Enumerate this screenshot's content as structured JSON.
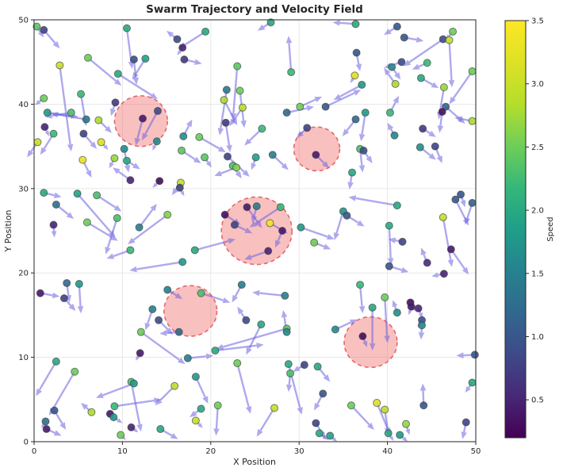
{
  "figure": {
    "title": "Swarm Trajectory and Velocity Field",
    "xlabel": "X Position",
    "ylabel": "Y Position"
  },
  "chart_data": {
    "type": "scatter",
    "subtype": "scatter-quiver-with-zones",
    "title": "Swarm Trajectory and Velocity Field",
    "xlabel": "X Position",
    "ylabel": "Y Position",
    "xlim": [
      0,
      50
    ],
    "ylim": [
      0,
      50
    ],
    "xticks": [
      0,
      10,
      20,
      30,
      40,
      50
    ],
    "yticks": [
      0,
      10,
      20,
      30,
      40,
      50
    ],
    "grid": true,
    "legend": "none",
    "colorbar": {
      "label": "Speed",
      "vmin": 0.2,
      "vmax": 3.5,
      "ticks": [
        0.5,
        1.0,
        1.5,
        2.0,
        2.5,
        3.0,
        3.5
      ]
    },
    "colors": {
      "viridis_stops": [
        "#440154",
        "#482878",
        "#3e4a89",
        "#31688e",
        "#26828e",
        "#1f9e89",
        "#35b779",
        "#6ece58",
        "#b5de2b",
        "#dde125",
        "#fde725"
      ],
      "arrow": "#6c63e0",
      "arrow_opacity": 0.55,
      "zone_fill": "#ee5a5a",
      "zone_fill_opacity": 0.38,
      "zone_stroke": "#e04848",
      "grid": "#e5e5e5",
      "spine": "#262626",
      "marker_edge": "#3a3a3a"
    },
    "zones": [
      [
        12.1,
        38.0,
        3.0
      ],
      [
        32.0,
        34.7,
        2.6
      ],
      [
        25.2,
        25.0,
        4.0
      ],
      [
        17.7,
        15.5,
        3.0
      ],
      [
        38.1,
        11.8,
        3.0
      ]
    ],
    "points": [
      [
        0.3,
        49.2,
        2.4,
        0.8,
        -1.3
      ],
      [
        1.1,
        48.8,
        0.8,
        1.8,
        -2.2
      ],
      [
        10.5,
        49.0,
        2.0,
        0.6,
        -4.8
      ],
      [
        16.2,
        47.7,
        0.9,
        -1.2,
        1.0
      ],
      [
        16.8,
        46.7,
        0.5,
        -0.6,
        -0.9
      ],
      [
        6.1,
        45.5,
        2.5,
        3.8,
        -3.3
      ],
      [
        2.9,
        44.6,
        3.0,
        1.3,
        -10.2
      ],
      [
        11.3,
        45.3,
        0.9,
        0.3,
        -3.0
      ],
      [
        12.6,
        45.4,
        1.9,
        -1.5,
        -2.5
      ],
      [
        17.0,
        45.3,
        0.7,
        2.0,
        -0.5
      ],
      [
        9.5,
        43.6,
        2.0,
        4.5,
        -3.0
      ],
      [
        5.3,
        41.2,
        2.2,
        0.6,
        -3.8
      ],
      [
        1.1,
        40.7,
        2.5,
        -1.0,
        -0.8
      ],
      [
        9.2,
        40.2,
        0.7,
        -0.5,
        -1.6
      ],
      [
        1.5,
        39.0,
        1.8,
        3.5,
        -0.5
      ],
      [
        4.2,
        39.0,
        2.3,
        -3.0,
        -0.5
      ],
      [
        5.9,
        38.2,
        1.4,
        -4.0,
        0.7
      ],
      [
        7.3,
        38.1,
        2.8,
        1.5,
        -1.5
      ],
      [
        1.2,
        37.3,
        0.5,
        0.5,
        -1.1
      ],
      [
        12.3,
        38.3,
        0.4,
        -0.8,
        -3.2
      ],
      [
        14.0,
        39.2,
        0.9,
        -1.8,
        -3.5
      ],
      [
        13.9,
        35.6,
        1.6,
        -0.5,
        -1.1
      ],
      [
        2.2,
        36.5,
        2.2,
        -1.5,
        -2.5
      ],
      [
        5.6,
        36.5,
        0.8,
        1.5,
        -1.8
      ],
      [
        7.6,
        35.5,
        3.2,
        0.8,
        -0.9
      ],
      [
        0.4,
        35.5,
        3.0,
        -1.2,
        -1.8
      ],
      [
        10.2,
        34.7,
        1.6,
        0.5,
        -2.8
      ],
      [
        5.5,
        33.4,
        3.3,
        1.0,
        -2.1
      ],
      [
        9.1,
        33.6,
        2.7,
        -0.6,
        -1.2
      ],
      [
        10.5,
        33.3,
        2.0,
        1.5,
        -1.0
      ],
      [
        16.7,
        34.5,
        2.4,
        2.2,
        -1.5
      ],
      [
        16.9,
        36.2,
        1.7,
        1.0,
        2.0
      ],
      [
        26.8,
        49.7,
        2.0,
        -1.5,
        -1.0
      ],
      [
        19.4,
        48.6,
        2.0,
        -3.0,
        -2.0
      ],
      [
        29.1,
        43.8,
        2.2,
        -0.3,
        4.3
      ],
      [
        23.0,
        44.5,
        2.4,
        -0.5,
        -6.4
      ],
      [
        21.8,
        41.7,
        1.4,
        -0.8,
        -5.4
      ],
      [
        23.3,
        41.6,
        2.5,
        0.5,
        -4.4
      ],
      [
        21.5,
        40.5,
        2.8,
        1.5,
        -3.0
      ],
      [
        23.6,
        39.6,
        2.9,
        -1.5,
        -2.2
      ],
      [
        28.6,
        39.0,
        1.2,
        3.1,
        0.7
      ],
      [
        30.1,
        39.7,
        2.5,
        2.5,
        1.2
      ],
      [
        33.0,
        39.7,
        1.0,
        4.0,
        2.0
      ],
      [
        21.7,
        37.8,
        0.7,
        0.5,
        -3.5
      ],
      [
        25.8,
        37.1,
        2.2,
        -2.0,
        -2.0
      ],
      [
        18.7,
        36.1,
        2.5,
        3.0,
        -1.8
      ],
      [
        19.3,
        33.7,
        2.4,
        0.8,
        -1.2
      ],
      [
        21.9,
        33.8,
        0.8,
        2.5,
        -2.4
      ],
      [
        25.1,
        33.7,
        1.9,
        -0.5,
        -1.5
      ],
      [
        27.0,
        34.0,
        1.5,
        1.8,
        -1.8
      ],
      [
        30.9,
        37.2,
        0.8,
        -1.2,
        -1.2
      ],
      [
        31.9,
        34.0,
        0.4,
        1.5,
        -1.6
      ],
      [
        22.5,
        32.7,
        2.3,
        1.0,
        -1.5
      ],
      [
        22.9,
        32.5,
        2.6,
        -2.5,
        -1.0
      ],
      [
        36.4,
        49.5,
        2.0,
        -2.6,
        0.2
      ],
      [
        41.1,
        49.2,
        1.0,
        -1.5,
        -1.0
      ],
      [
        41.9,
        47.9,
        1.0,
        2.2,
        -0.4
      ],
      [
        47.4,
        48.6,
        2.5,
        -0.8,
        -1.0
      ],
      [
        46.3,
        47.7,
        0.9,
        -4.5,
        -3.2
      ],
      [
        47.0,
        47.6,
        2.9,
        0.3,
        -5.6
      ],
      [
        36.5,
        46.1,
        1.0,
        0.4,
        -2.2
      ],
      [
        36.3,
        43.4,
        3.2,
        -0.5,
        -0.9
      ],
      [
        41.6,
        45.0,
        0.9,
        -2.0,
        -0.7
      ],
      [
        40.5,
        44.4,
        1.6,
        1.0,
        -1.5
      ],
      [
        44.5,
        44.9,
        2.2,
        -1.7,
        -0.8
      ],
      [
        43.8,
        43.1,
        2.0,
        2.0,
        -1.2
      ],
      [
        49.6,
        43.9,
        2.5,
        -2.6,
        -3.9
      ],
      [
        40.9,
        42.4,
        2.8,
        -1.3,
        1.9
      ],
      [
        37.1,
        42.3,
        1.8,
        -3.2,
        -1.8
      ],
      [
        46.4,
        42.0,
        2.7,
        -0.6,
        -3.8
      ],
      [
        46.6,
        39.7,
        1.1,
        2.2,
        -2.0
      ],
      [
        46.2,
        39.1,
        0.3,
        -0.3,
        -2.5
      ],
      [
        49.6,
        38.0,
        2.8,
        -2.0,
        0.4
      ],
      [
        37.5,
        39.0,
        1.8,
        -0.5,
        -3.4
      ],
      [
        36.4,
        38.2,
        1.2,
        -1.5,
        -2.0
      ],
      [
        40.3,
        39.0,
        2.2,
        1.0,
        2.0
      ],
      [
        44.0,
        37.1,
        0.7,
        1.5,
        -1.0
      ],
      [
        40.8,
        36.3,
        1.6,
        -0.8,
        1.5
      ],
      [
        43.7,
        34.9,
        1.7,
        1.8,
        -1.5
      ],
      [
        45.4,
        35.0,
        0.8,
        0.8,
        -2.0
      ],
      [
        36.9,
        34.7,
        2.3,
        0.3,
        -2.8
      ],
      [
        37.3,
        34.5,
        0.9,
        1.0,
        -1.5
      ],
      [
        10.9,
        31.0,
        0.5,
        -2.0,
        1.5
      ],
      [
        14.2,
        30.9,
        0.3,
        -0.8,
        -0.8
      ],
      [
        16.6,
        30.7,
        3.0,
        -1.0,
        -1.5
      ],
      [
        16.5,
        30.1,
        0.8,
        0.5,
        -1.0
      ],
      [
        1.1,
        29.5,
        2.0,
        2.0,
        -0.5
      ],
      [
        4.9,
        29.4,
        1.9,
        4.3,
        -5.2
      ],
      [
        7.1,
        29.2,
        2.3,
        2.8,
        -1.9
      ],
      [
        2.5,
        28.1,
        1.3,
        2.0,
        -1.7
      ],
      [
        2.2,
        25.7,
        0.5,
        0.1,
        -1.5
      ],
      [
        6.0,
        26.0,
        2.5,
        3.5,
        -2.2
      ],
      [
        9.4,
        26.5,
        2.3,
        -1.3,
        -4.3
      ],
      [
        11.9,
        25.4,
        1.5,
        2.0,
        2.8
      ],
      [
        15.1,
        26.9,
        2.6,
        -4.5,
        -3.5
      ],
      [
        10.9,
        22.7,
        2.2,
        -2.7,
        -1.0
      ],
      [
        16.8,
        21.3,
        1.8,
        -6.0,
        -1.0
      ],
      [
        3.7,
        18.8,
        1.2,
        0.3,
        -2.3
      ],
      [
        5.1,
        18.7,
        1.8,
        0.2,
        -3.5
      ],
      [
        0.7,
        17.6,
        0.4,
        2.2,
        -0.4
      ],
      [
        3.4,
        17.0,
        0.8,
        1.3,
        -1.5
      ],
      [
        15.1,
        18.0,
        1.5,
        1.7,
        -1.1
      ],
      [
        21.6,
        26.9,
        0.3,
        1.8,
        -1.2
      ],
      [
        24.1,
        27.8,
        0.4,
        1.7,
        -2.5
      ],
      [
        25.2,
        27.9,
        1.4,
        -0.5,
        -2.0
      ],
      [
        27.9,
        27.8,
        2.2,
        -3.5,
        -2.4
      ],
      [
        22.7,
        25.7,
        0.8,
        2.0,
        -1.0
      ],
      [
        26.7,
        25.9,
        3.4,
        2.0,
        -1.2
      ],
      [
        28.1,
        25.0,
        0.4,
        -0.8,
        -2.0
      ],
      [
        26.5,
        22.6,
        0.5,
        -2.7,
        -1.0
      ],
      [
        18.2,
        22.7,
        2.0,
        4.6,
        1.3
      ],
      [
        18.9,
        17.6,
        2.3,
        3.3,
        -1.1
      ],
      [
        23.5,
        18.6,
        1.5,
        -1.1,
        -2.1
      ],
      [
        28.4,
        17.3,
        1.5,
        -3.7,
        0.4
      ],
      [
        30.2,
        25.4,
        1.8,
        3.8,
        -1.4
      ],
      [
        31.7,
        23.6,
        2.5,
        1.9,
        -0.8
      ],
      [
        36.0,
        31.9,
        2.0,
        -0.3,
        -2.0
      ],
      [
        35.0,
        27.3,
        1.7,
        -1.0,
        -3.4
      ],
      [
        35.4,
        26.8,
        1.0,
        2.0,
        -1.3
      ],
      [
        41.1,
        28.0,
        2.0,
        -5.5,
        1.0
      ],
      [
        40.2,
        25.6,
        2.0,
        0.2,
        -4.7
      ],
      [
        41.7,
        23.7,
        0.8,
        -1.6,
        0.3
      ],
      [
        40.2,
        20.8,
        1.0,
        2.2,
        -0.7
      ],
      [
        44.5,
        21.2,
        0.6,
        -0.7,
        1.8
      ],
      [
        46.4,
        19.9,
        0.5,
        -1.4,
        -0.3
      ],
      [
        48.3,
        29.3,
        1.0,
        0.5,
        -1.5
      ],
      [
        47.7,
        28.7,
        1.0,
        1.5,
        -3.1
      ],
      [
        49.6,
        28.3,
        1.1,
        -0.8,
        -2.6
      ],
      [
        46.3,
        26.6,
        3.0,
        1.0,
        -5.9
      ],
      [
        47.2,
        22.8,
        0.4,
        2.0,
        -3.0
      ],
      [
        36.9,
        18.6,
        2.2,
        0.3,
        -3.4
      ],
      [
        39.7,
        17.1,
        2.5,
        0.3,
        -5.4
      ],
      [
        42.6,
        16.5,
        0.3,
        0.5,
        -1.0
      ],
      [
        13.4,
        15.7,
        1.5,
        -0.8,
        -2.5
      ],
      [
        14.1,
        14.4,
        0.9,
        1.6,
        -1.7
      ],
      [
        12.1,
        13.0,
        2.5,
        5.0,
        -3.8
      ],
      [
        16.4,
        13.0,
        1.2,
        -2.2,
        -0.2
      ],
      [
        12.0,
        10.5,
        0.4,
        -0.5,
        -0.9
      ],
      [
        2.5,
        9.5,
        2.0,
        -2.3,
        -4.1
      ],
      [
        4.6,
        8.3,
        2.5,
        -2.9,
        -5.2
      ],
      [
        11.0,
        7.1,
        2.3,
        1.1,
        -5.9
      ],
      [
        11.3,
        6.9,
        1.8,
        -4.3,
        -1.7
      ],
      [
        15.9,
        6.6,
        2.9,
        -2.2,
        -2.3
      ],
      [
        9.1,
        4.2,
        2.2,
        5.3,
        0.8
      ],
      [
        6.5,
        3.5,
        2.8,
        -1.2,
        1.1
      ],
      [
        8.6,
        3.3,
        0.4,
        0.5,
        -0.9
      ],
      [
        9.0,
        2.9,
        1.8,
        1.0,
        -0.7
      ],
      [
        2.3,
        3.7,
        1.0,
        1.3,
        -2.3
      ],
      [
        1.3,
        2.4,
        1.3,
        -0.5,
        -0.8
      ],
      [
        1.4,
        1.5,
        0.4,
        1.7,
        -0.8
      ],
      [
        11.0,
        1.7,
        0.5,
        0.8,
        -0.6
      ],
      [
        14.3,
        1.5,
        2.0,
        2.0,
        -1.2
      ],
      [
        9.8,
        0.8,
        2.5,
        0.6,
        -0.6
      ],
      [
        24.0,
        14.4,
        0.9,
        -1.0,
        1.6
      ],
      [
        25.7,
        13.9,
        2.0,
        -1.7,
        -3.6
      ],
      [
        28.6,
        13.4,
        2.4,
        -8.0,
        -2.4
      ],
      [
        28.6,
        13.0,
        1.6,
        -0.4,
        2.6
      ],
      [
        20.5,
        10.8,
        2.0,
        5.5,
        0.7
      ],
      [
        17.4,
        9.9,
        1.5,
        2.9,
        0.3
      ],
      [
        23.0,
        9.3,
        2.5,
        1.5,
        -6.0
      ],
      [
        18.3,
        7.7,
        1.8,
        1.4,
        -3.2
      ],
      [
        28.8,
        9.2,
        2.0,
        1.5,
        -6.0
      ],
      [
        29.0,
        8.1,
        2.3,
        -0.2,
        -2.2
      ],
      [
        30.6,
        9.1,
        0.8,
        -1.3,
        -0.8
      ],
      [
        32.1,
        8.9,
        2.0,
        1.4,
        -1.8
      ],
      [
        32.7,
        5.7,
        1.0,
        -1.0,
        -2.0
      ],
      [
        20.8,
        4.3,
        2.5,
        -0.2,
        -3.6
      ],
      [
        18.9,
        3.9,
        2.0,
        -1.3,
        -1.0
      ],
      [
        18.3,
        2.5,
        3.0,
        0.8,
        -0.9
      ],
      [
        27.2,
        4.0,
        3.0,
        -2.0,
        -3.4
      ],
      [
        31.9,
        2.2,
        0.8,
        1.1,
        -1.9
      ],
      [
        32.3,
        1.0,
        2.0,
        1.0,
        -0.8
      ],
      [
        33.5,
        0.7,
        1.9,
        0.8,
        -0.7
      ],
      [
        34.1,
        13.3,
        1.6,
        2.5,
        1.2
      ],
      [
        38.3,
        15.9,
        2.0,
        0.0,
        -5.1
      ],
      [
        41.1,
        15.3,
        1.7,
        -0.5,
        1.5
      ],
      [
        42.7,
        16.0,
        0.4,
        -0.3,
        -1.0
      ],
      [
        43.5,
        15.8,
        0.5,
        0.5,
        -1.2
      ],
      [
        43.9,
        14.4,
        0.9,
        -0.5,
        -0.9
      ],
      [
        43.9,
        13.8,
        1.6,
        -0.1,
        -1.7
      ],
      [
        37.2,
        12.5,
        0.3,
        0.5,
        -1.3
      ],
      [
        49.9,
        10.3,
        1.0,
        -2.1,
        -0.1
      ],
      [
        49.6,
        7.0,
        2.0,
        -0.8,
        -1.2
      ],
      [
        44.1,
        4.3,
        1.0,
        -0.1,
        2.6
      ],
      [
        35.9,
        4.3,
        2.5,
        2.6,
        -2.9
      ],
      [
        38.8,
        4.6,
        3.2,
        1.6,
        -4.0
      ],
      [
        39.7,
        3.8,
        2.9,
        0.4,
        -3.0
      ],
      [
        42.1,
        2.1,
        2.7,
        0.4,
        -1.3
      ],
      [
        40.1,
        1.0,
        2.0,
        0.6,
        -0.9
      ],
      [
        41.4,
        0.8,
        1.8,
        0.9,
        -0.8
      ],
      [
        48.9,
        2.3,
        0.8,
        -0.4,
        -2.0
      ]
    ]
  }
}
